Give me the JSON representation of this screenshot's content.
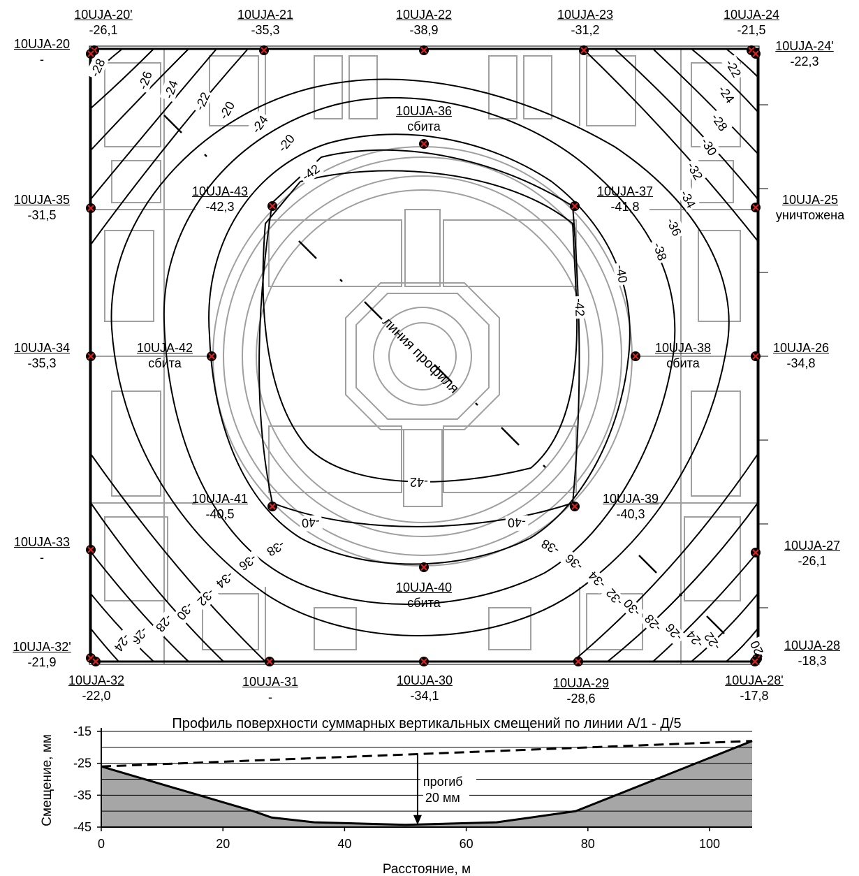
{
  "benchmarks": [
    {
      "id": "10UJA-20'",
      "value": "-26,1"
    },
    {
      "id": "10UJA-21",
      "value": "-35,3"
    },
    {
      "id": "10UJA-22",
      "value": "-38,9"
    },
    {
      "id": "10UJA-23",
      "value": "-31,2"
    },
    {
      "id": "10UJA-24",
      "value": "-21,5"
    },
    {
      "id": "10UJA-20",
      "value": "-"
    },
    {
      "id": "10UJA-24'",
      "value": "-22,3"
    },
    {
      "id": "10UJA-36",
      "value": "сбита"
    },
    {
      "id": "10UJA-43",
      "value": "-42,3"
    },
    {
      "id": "10UJA-37",
      "value": "-41,8"
    },
    {
      "id": "10UJA-35",
      "value": "-31,5"
    },
    {
      "id": "10UJA-25",
      "value": "уничтожена"
    },
    {
      "id": "10UJA-34",
      "value": "-35,3"
    },
    {
      "id": "10UJA-42",
      "value": "сбита"
    },
    {
      "id": "10UJA-38",
      "value": "сбита"
    },
    {
      "id": "10UJA-26",
      "value": "-34,8"
    },
    {
      "id": "10UJA-41",
      "value": "-40,5"
    },
    {
      "id": "10UJA-39",
      "value": "-40,3"
    },
    {
      "id": "10UJA-33",
      "value": "-"
    },
    {
      "id": "10UJA-27",
      "value": "-26,1"
    },
    {
      "id": "10UJA-40",
      "value": "сбита"
    },
    {
      "id": "10UJA-32'",
      "value": "-21,9"
    },
    {
      "id": "10UJA-28",
      "value": "-18,3"
    },
    {
      "id": "10UJA-32",
      "value": "-22,0"
    },
    {
      "id": "10UJA-31",
      "value": "-"
    },
    {
      "id": "10UJA-30",
      "value": "-34,1"
    },
    {
      "id": "10UJA-29",
      "value": "-28,6"
    },
    {
      "id": "10UJA-28'",
      "value": "-17,8"
    }
  ],
  "contour_labels": [
    "-20",
    "-22",
    "-24",
    "-26",
    "-28",
    "-30",
    "-32",
    "-34",
    "-36",
    "-38",
    "-40",
    "-42"
  ],
  "profile_line_label": "линия профиля",
  "profile_chart": {
    "title": "Профиль поверхности суммарных вертикальных смещений по линии А/1 - Д/5",
    "ylabel": "Смещение, мм",
    "xlabel": "Расстояние, м",
    "y_ticks": [
      "-15",
      "-25",
      "-35",
      "-45"
    ],
    "x_ticks": [
      "0",
      "20",
      "40",
      "60",
      "80",
      "100"
    ],
    "annotation_line1": "прогиб",
    "annotation_line2": "20 мм"
  },
  "chart_data": {
    "type": "area",
    "title": "Профиль поверхности суммарных вертикальных смещений по линии А/1 - Д/5",
    "xlabel": "Расстояние, м",
    "ylabel": "Смещение, мм",
    "xlim": [
      0,
      107
    ],
    "ylim": [
      -45,
      -15
    ],
    "grid": true,
    "series": [
      {
        "style": "solid",
        "x": [
          0,
          25,
          28,
          35,
          50,
          65,
          78,
          107
        ],
        "values": [
          -26,
          -40,
          -42,
          -43.5,
          -44.3,
          -43.5,
          -40,
          -18
        ]
      },
      {
        "style": "dashed",
        "x": [
          0,
          107
        ],
        "values": [
          -26,
          -18
        ]
      }
    ],
    "annotation": {
      "x": 52,
      "y_top": -22,
      "y_bottom": -44.3,
      "text": "прогиб 20 мм"
    }
  }
}
